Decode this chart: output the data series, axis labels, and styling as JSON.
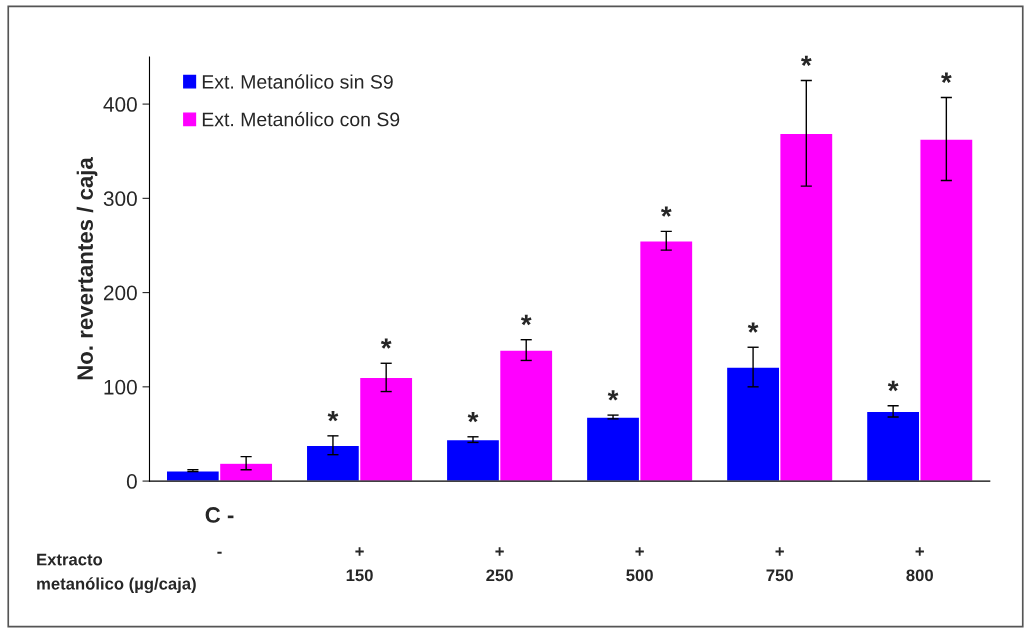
{
  "chart_data": {
    "type": "bar",
    "ylabel": "No. revertantes / caja",
    "categories": [
      "-",
      "+\n150",
      "+\n250",
      "+\n500",
      "+\n750",
      "+\n800"
    ],
    "series": [
      {
        "name": "Ext. Metanólico sin S9",
        "color": "#0000ff",
        "values": [
          11,
          38,
          44,
          68,
          121,
          74
        ],
        "errors": [
          1,
          10,
          3,
          2,
          21,
          6
        ],
        "value_labels": [
          null,
          "*",
          "*",
          "*",
          "*",
          "*"
        ]
      },
      {
        "name": "Ext. Metanólico con S9",
        "color": "#ff00ff",
        "values": [
          19,
          110,
          139,
          255,
          369,
          363
        ],
        "errors": [
          7,
          15,
          11,
          10,
          56,
          44
        ],
        "value_labels": [
          null,
          "*",
          "*",
          "*",
          "*",
          "*"
        ]
      }
    ],
    "annotations": [
      "C -",
      "Extracto\nmetanólico (µg/caja)"
    ],
    "ylim": [
      0,
      450
    ],
    "yticks": [
      0,
      100,
      200,
      300,
      400
    ],
    "grid": false,
    "legend": "top left"
  }
}
